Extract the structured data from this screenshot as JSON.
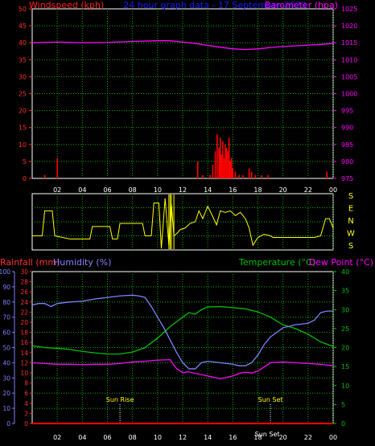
{
  "colors": {
    "grid": "#00b000",
    "frame": "#ffffff",
    "wind": "#ff0000",
    "baro": "#ff00ff",
    "title": "#1a1aff",
    "direction": "#ffff00",
    "rain": "#ff0000",
    "humidity": "#8080ff",
    "temperature": "#00c000",
    "dewpoint": "#ff00ff",
    "sun": "#ffff00",
    "axis_left": "#ff3030",
    "axis_right": "#ff00ff"
  },
  "chart_data": [
    {
      "type": "bar+line",
      "title": "24 hour graph data - 17 September 2023",
      "ylabel_left": "Windspeed (kph)",
      "ylabel_right": "Barometer (hpa)",
      "x_ticks": [
        "02",
        "04",
        "06",
        "08",
        "10",
        "12",
        "14",
        "16",
        "18",
        "20",
        "22",
        "00"
      ],
      "x_range": [
        0,
        24
      ],
      "ylim_left": [
        0,
        50
      ],
      "ylim_right": [
        975,
        1025
      ],
      "y_ticks_left": [
        "0",
        "5",
        "10",
        "15",
        "20",
        "25",
        "30",
        "35",
        "40",
        "45",
        "50"
      ],
      "y_ticks_right": [
        "975",
        "980",
        "985",
        "990",
        "995",
        "1000",
        "1005",
        "1010",
        "1015",
        "1020",
        "1025"
      ],
      "wind_gust_x": [
        1.0,
        2.0,
        13.2,
        13.6,
        14.2,
        14.4,
        14.6,
        14.75,
        14.9,
        15.0,
        15.1,
        15.2,
        15.3,
        15.4,
        15.5,
        15.6,
        15.7,
        15.8,
        15.9,
        16.0,
        16.2,
        16.5,
        16.8,
        17.3,
        17.5,
        17.8,
        18.3,
        18.8,
        23.5
      ],
      "wind_gust_y": [
        1,
        6,
        5,
        1,
        1,
        4,
        8,
        13,
        9,
        12,
        7,
        11,
        6,
        10,
        9,
        8,
        12,
        5,
        6,
        3,
        2,
        1,
        1,
        3,
        2,
        1,
        1,
        1,
        2
      ],
      "baro_x": [
        0,
        2,
        4,
        6,
        8,
        10,
        11,
        12,
        13,
        14,
        15,
        16,
        17,
        18,
        19,
        20,
        21,
        22,
        23,
        24
      ],
      "baro_y": [
        1015.0,
        1015.2,
        1015.0,
        1015.1,
        1015.4,
        1015.6,
        1015.6,
        1015.2,
        1014.8,
        1014.2,
        1013.7,
        1013.2,
        1013.0,
        1013.2,
        1013.6,
        1013.9,
        1014.1,
        1014.3,
        1014.5,
        1014.8
      ]
    },
    {
      "type": "line",
      "ylabel_right": [
        "S",
        "E",
        "N",
        "W",
        "S"
      ],
      "x_range": [
        0,
        24
      ],
      "ylim": [
        0,
        360
      ],
      "dir_x": [
        0.0,
        0.8,
        1.0,
        1.6,
        1.8,
        3.0,
        4.6,
        4.8,
        6.2,
        6.4,
        6.8,
        7.0,
        8.8,
        9.0,
        9.5,
        9.7,
        10.1,
        10.3,
        10.6,
        10.9,
        11.1,
        11.3,
        11.6,
        11.8,
        12.2,
        12.6,
        13.0,
        13.3,
        13.6,
        14.0,
        14.3,
        14.7,
        15.0,
        15.4,
        15.8,
        16.2,
        16.6,
        17.0,
        17.3,
        17.6,
        18.0,
        18.5,
        19.0,
        19.2,
        21.0,
        22.5,
        23.0,
        23.4,
        23.7,
        24.0
      ],
      "dir_y": [
        90,
        90,
        250,
        250,
        90,
        70,
        70,
        150,
        150,
        70,
        70,
        170,
        170,
        90,
        90,
        300,
        300,
        10,
        330,
        30,
        300,
        90,
        110,
        130,
        140,
        170,
        180,
        250,
        200,
        280,
        230,
        160,
        250,
        240,
        250,
        220,
        240,
        200,
        140,
        30,
        80,
        100,
        90,
        80,
        80,
        80,
        90,
        200,
        200,
        140
      ],
      "extra_vertical_x": [
        10.9,
        11.0,
        11.1,
        11.3
      ]
    },
    {
      "type": "line",
      "ylabel_left_1": "Rainfall (mm)",
      "ylabel_left_2": "Humidity (%)",
      "ylabel_right_1": "Temperature (°C)",
      "ylabel_right_2": "Dew Point (°C)",
      "x_ticks": [
        "02",
        "04",
        "06",
        "08",
        "10",
        "12",
        "14",
        "16",
        "18",
        "20",
        "22",
        "00"
      ],
      "x_range": [
        0,
        24
      ],
      "humidity_ticks": [
        "0",
        "10",
        "20",
        "30",
        "40",
        "50",
        "60",
        "70",
        "80",
        "90",
        "100"
      ],
      "rain_ticks": [
        "0",
        "2",
        "4",
        "6",
        "8",
        "10",
        "12",
        "14",
        "16",
        "18",
        "20",
        "22",
        "24",
        "26",
        "28",
        "30"
      ],
      "temp_ticks": [
        "0",
        "5",
        "10",
        "15",
        "20",
        "25",
        "30",
        "35",
        "40"
      ],
      "ylim_humidity": [
        0,
        100
      ],
      "ylim_rain": [
        0,
        30
      ],
      "ylim_temp": [
        0,
        40
      ],
      "humidity_x": [
        0,
        0.5,
        1,
        1.5,
        2,
        3,
        4,
        5,
        6,
        7,
        8,
        8.5,
        9,
        9.5,
        10,
        10.5,
        11,
        11.5,
        12,
        12.5,
        13,
        13.5,
        14,
        15,
        16,
        16.5,
        17,
        17.5,
        18,
        18.5,
        19,
        19.5,
        20,
        21,
        22,
        22.5,
        23,
        23.5,
        24
      ],
      "humidity_y": [
        78,
        79,
        79,
        77,
        79,
        80,
        80.5,
        82,
        83,
        84,
        84.5,
        84,
        83,
        77,
        70,
        63,
        55,
        47,
        40,
        36,
        36,
        40,
        41,
        40,
        39,
        38,
        38,
        40,
        45,
        52,
        57,
        60,
        63,
        65,
        66,
        68,
        73,
        74,
        74
      ],
      "temperature_x": [
        0,
        1,
        2,
        3,
        4,
        5,
        6,
        7,
        8,
        9,
        10,
        11,
        12,
        12.5,
        13,
        13.5,
        14,
        15,
        16,
        17,
        17.5,
        18,
        19,
        19.5,
        20,
        21,
        22,
        23,
        24
      ],
      "temperature_y": [
        20.5,
        20,
        19.8,
        19.5,
        19,
        18.6,
        18.3,
        18.3,
        18.8,
        20,
        22.5,
        25.5,
        28,
        29.2,
        28.8,
        30,
        30.7,
        30.8,
        30.5,
        30.2,
        29.8,
        29.4,
        28,
        27,
        26,
        25,
        23.5,
        21.5,
        20.3
      ],
      "dewpoint_x": [
        0,
        1,
        2,
        3,
        4,
        5,
        6,
        7,
        8,
        9,
        10,
        11,
        11.5,
        12,
        12.5,
        13,
        14,
        15,
        16,
        16.5,
        17,
        17.5,
        18,
        19,
        20,
        21,
        22,
        23,
        24
      ],
      "dewpoint_y": [
        16,
        15.8,
        15.6,
        15.6,
        15.5,
        15.6,
        15.6,
        15.8,
        16.2,
        16.4,
        16.7,
        16.8,
        14.5,
        13.4,
        13.6,
        13.2,
        12.5,
        11.8,
        12.5,
        13.2,
        13.5,
        13.3,
        13.8,
        16,
        16.2,
        16,
        15.8,
        15.6,
        15.2
      ],
      "rain_x": [
        0,
        24
      ],
      "rain_y": [
        0,
        0
      ],
      "sunrise_label": "Sun Rise",
      "sunrise_x": 7.0,
      "sunset_label": "Sun Set",
      "sunset_x": 19.0,
      "sunset_time_label": "Sun Set"
    }
  ]
}
